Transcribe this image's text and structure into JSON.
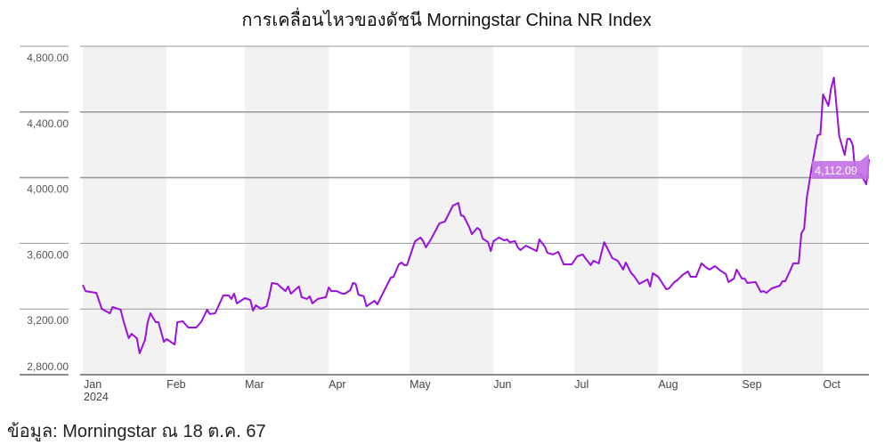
{
  "chart_data": {
    "type": "line",
    "title": "การเคลื่อนไหวของดัชนี Morningstar China NR Index",
    "source_note": "ข้อมูล: Morningstar ณ 18 ต.ค. 67",
    "xlim": [
      "2023-12-31",
      "2024-10-18"
    ],
    "ylim": [
      2800,
      4800
    ],
    "yticks": [
      4800,
      4400,
      4000,
      3600,
      3200,
      2800
    ],
    "ytick_labels": [
      "4,800.00",
      "4,400.00",
      "4,000.00",
      "3,600.00",
      "3,200.00",
      "2,800.00"
    ],
    "xticks": [
      "2024-01-01",
      "2024-02-01",
      "2024-03-01",
      "2024-04-01",
      "2024-05-01",
      "2024-06-01",
      "2024-07-01",
      "2024-08-01",
      "2024-09-01",
      "2024-10-01"
    ],
    "xtick_labels": [
      "Jan",
      "Feb",
      "Mar",
      "Apr",
      "May",
      "Jun",
      "Jul",
      "Aug",
      "Sep",
      "Oct"
    ],
    "xtick_year": "2024",
    "grid": "horizontal",
    "alternating_month_bands": true,
    "colors": {
      "line": "#9a10dc",
      "band": "#f2f2f2",
      "grid": "#9a9a9a",
      "last_label_bg": "#c26fe6",
      "last_label_text": "#ffffff"
    },
    "last_value_label": "4,112.09",
    "series": [
      {
        "points": [
          [
            "2024-01-01",
            3347
          ],
          [
            "2024-01-02",
            3309
          ],
          [
            "2024-01-06",
            3298
          ],
          [
            "2024-01-08",
            3201
          ],
          [
            "2024-01-11",
            3174
          ],
          [
            "2024-01-12",
            3212
          ],
          [
            "2024-01-15",
            3196
          ],
          [
            "2024-01-16",
            3130
          ],
          [
            "2024-01-18",
            3022
          ],
          [
            "2024-01-19",
            3049
          ],
          [
            "2024-01-21",
            3022
          ],
          [
            "2024-01-22",
            2930
          ],
          [
            "2024-01-24",
            3011
          ],
          [
            "2024-01-25",
            3120
          ],
          [
            "2024-01-26",
            3174
          ],
          [
            "2024-01-28",
            3120
          ],
          [
            "2024-01-29",
            3120
          ],
          [
            "2024-01-31",
            3000
          ],
          [
            "2024-02-01",
            3017
          ],
          [
            "2024-02-04",
            2984
          ],
          [
            "2024-02-05",
            3120
          ],
          [
            "2024-02-07",
            3125
          ],
          [
            "2024-02-09",
            3087
          ],
          [
            "2024-02-12",
            3087
          ],
          [
            "2024-02-14",
            3125
          ],
          [
            "2024-02-16",
            3196
          ],
          [
            "2024-02-17",
            3169
          ],
          [
            "2024-02-19",
            3174
          ],
          [
            "2024-02-22",
            3283
          ],
          [
            "2024-02-24",
            3283
          ],
          [
            "2024-02-25",
            3261
          ],
          [
            "2024-02-26",
            3293
          ],
          [
            "2024-02-27",
            3234
          ],
          [
            "2024-03-01",
            3266
          ],
          [
            "2024-03-03",
            3255
          ],
          [
            "2024-03-04",
            3190
          ],
          [
            "2024-03-05",
            3223
          ],
          [
            "2024-03-07",
            3201
          ],
          [
            "2024-03-09",
            3217
          ],
          [
            "2024-03-10",
            3277
          ],
          [
            "2024-03-11",
            3358
          ],
          [
            "2024-03-13",
            3353
          ],
          [
            "2024-03-14",
            3337
          ],
          [
            "2024-03-16",
            3309
          ],
          [
            "2024-03-17",
            3337
          ],
          [
            "2024-03-18",
            3293
          ],
          [
            "2024-03-21",
            3337
          ],
          [
            "2024-03-22",
            3272
          ],
          [
            "2024-03-24",
            3261
          ],
          [
            "2024-03-25",
            3277
          ],
          [
            "2024-03-26",
            3234
          ],
          [
            "2024-03-28",
            3261
          ],
          [
            "2024-03-31",
            3272
          ],
          [
            "2024-04-01",
            3331
          ],
          [
            "2024-04-02",
            3309
          ],
          [
            "2024-04-04",
            3309
          ],
          [
            "2024-04-06",
            3293
          ],
          [
            "2024-04-07",
            3293
          ],
          [
            "2024-04-09",
            3315
          ],
          [
            "2024-04-10",
            3358
          ],
          [
            "2024-04-11",
            3353
          ],
          [
            "2024-04-12",
            3288
          ],
          [
            "2024-04-14",
            3277
          ],
          [
            "2024-04-15",
            3217
          ],
          [
            "2024-04-18",
            3250
          ],
          [
            "2024-04-19",
            3228
          ],
          [
            "2024-04-24",
            3391
          ],
          [
            "2024-04-25",
            3396
          ],
          [
            "2024-04-27",
            3472
          ],
          [
            "2024-04-28",
            3483
          ],
          [
            "2024-04-29",
            3467
          ],
          [
            "2024-04-30",
            3467
          ],
          [
            "2024-05-03",
            3613
          ],
          [
            "2024-05-05",
            3635
          ],
          [
            "2024-05-06",
            3613
          ],
          [
            "2024-05-07",
            3575
          ],
          [
            "2024-05-09",
            3629
          ],
          [
            "2024-05-12",
            3722
          ],
          [
            "2024-05-14",
            3732
          ],
          [
            "2024-05-17",
            3830
          ],
          [
            "2024-05-19",
            3846
          ],
          [
            "2024-05-20",
            3770
          ],
          [
            "2024-05-21",
            3765
          ],
          [
            "2024-05-23",
            3700
          ],
          [
            "2024-05-24",
            3656
          ],
          [
            "2024-05-26",
            3694
          ],
          [
            "2024-05-27",
            3683
          ],
          [
            "2024-05-28",
            3629
          ],
          [
            "2024-05-30",
            3607
          ],
          [
            "2024-05-31",
            3553
          ],
          [
            "2024-06-01",
            3613
          ],
          [
            "2024-06-03",
            3635
          ],
          [
            "2024-06-05",
            3618
          ],
          [
            "2024-06-06",
            3624
          ],
          [
            "2024-06-07",
            3607
          ],
          [
            "2024-06-09",
            3613
          ],
          [
            "2024-06-10",
            3575
          ],
          [
            "2024-06-11",
            3559
          ],
          [
            "2024-06-13",
            3586
          ],
          [
            "2024-06-17",
            3553
          ],
          [
            "2024-06-18",
            3624
          ],
          [
            "2024-06-20",
            3580
          ],
          [
            "2024-06-21",
            3542
          ],
          [
            "2024-06-23",
            3532
          ],
          [
            "2024-06-25",
            3548
          ],
          [
            "2024-06-27",
            3472
          ],
          [
            "2024-06-28",
            3472
          ],
          [
            "2024-06-30",
            3472
          ],
          [
            "2024-07-02",
            3521
          ],
          [
            "2024-07-04",
            3532
          ],
          [
            "2024-07-05",
            3510
          ],
          [
            "2024-07-07",
            3467
          ],
          [
            "2024-07-08",
            3494
          ],
          [
            "2024-07-10",
            3478
          ],
          [
            "2024-07-12",
            3607
          ],
          [
            "2024-07-15",
            3510
          ],
          [
            "2024-07-17",
            3494
          ],
          [
            "2024-07-19",
            3440
          ],
          [
            "2024-07-20",
            3483
          ],
          [
            "2024-07-22",
            3418
          ],
          [
            "2024-07-23",
            3402
          ],
          [
            "2024-07-25",
            3353
          ],
          [
            "2024-07-28",
            3380
          ],
          [
            "2024-07-29",
            3337
          ],
          [
            "2024-07-30",
            3418
          ],
          [
            "2024-08-01",
            3396
          ],
          [
            "2024-08-04",
            3320
          ],
          [
            "2024-08-05",
            3326
          ],
          [
            "2024-08-07",
            3364
          ],
          [
            "2024-08-08",
            3375
          ],
          [
            "2024-08-10",
            3407
          ],
          [
            "2024-08-12",
            3429
          ],
          [
            "2024-08-13",
            3396
          ],
          [
            "2024-08-15",
            3396
          ],
          [
            "2024-08-17",
            3478
          ],
          [
            "2024-08-19",
            3450
          ],
          [
            "2024-08-20",
            3440
          ],
          [
            "2024-08-22",
            3461
          ],
          [
            "2024-08-24",
            3434
          ],
          [
            "2024-08-26",
            3413
          ],
          [
            "2024-08-27",
            3364
          ],
          [
            "2024-08-29",
            3385
          ],
          [
            "2024-08-30",
            3440
          ],
          [
            "2024-09-01",
            3385
          ],
          [
            "2024-09-02",
            3385
          ],
          [
            "2024-09-03",
            3358
          ],
          [
            "2024-09-06",
            3364
          ],
          [
            "2024-09-08",
            3304
          ],
          [
            "2024-09-09",
            3309
          ],
          [
            "2024-09-10",
            3298
          ],
          [
            "2024-09-12",
            3326
          ],
          [
            "2024-09-15",
            3342
          ],
          [
            "2024-09-16",
            3369
          ],
          [
            "2024-09-17",
            3369
          ],
          [
            "2024-09-19",
            3440
          ],
          [
            "2024-09-20",
            3478
          ],
          [
            "2024-09-22",
            3478
          ],
          [
            "2024-09-23",
            3662
          ],
          [
            "2024-09-24",
            3689
          ],
          [
            "2024-09-25",
            3879
          ],
          [
            "2024-09-27",
            4079
          ],
          [
            "2024-09-29",
            4258
          ],
          [
            "2024-09-30",
            4263
          ],
          [
            "2024-10-01",
            4507
          ],
          [
            "2024-10-03",
            4437
          ],
          [
            "2024-10-04",
            4545
          ],
          [
            "2024-10-05",
            4610
          ],
          [
            "2024-10-07",
            4253
          ],
          [
            "2024-10-09",
            4139
          ],
          [
            "2024-10-10",
            4236
          ],
          [
            "2024-10-11",
            4236
          ],
          [
            "2024-10-12",
            4198
          ],
          [
            "2024-10-13",
            4025
          ],
          [
            "2024-10-14",
            4025
          ],
          [
            "2024-10-15",
            4020
          ],
          [
            "2024-10-17",
            3960
          ],
          [
            "2024-10-18",
            4112.09
          ]
        ]
      }
    ]
  }
}
